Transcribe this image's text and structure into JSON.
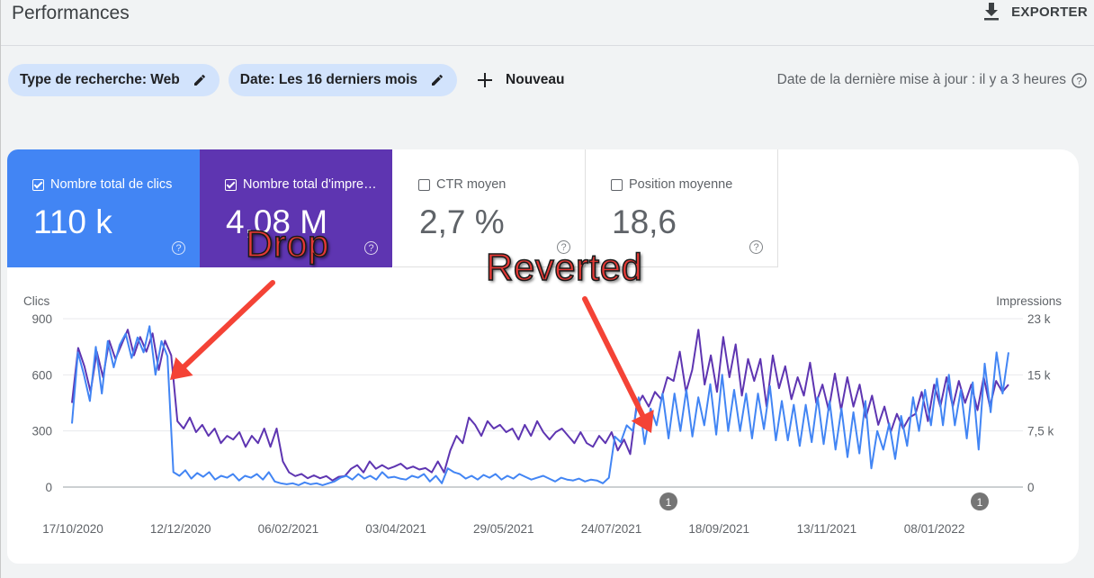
{
  "header": {
    "title": "Performances",
    "export_label": "EXPORTER"
  },
  "filters": {
    "search_type": "Type de recherche: Web",
    "date_range": "Date: Les 16 derniers mois",
    "new_label": "Nouveau",
    "last_update": "Date de la dernière mise à jour : il y a 3 heures"
  },
  "metrics": [
    {
      "label": "Nombre total de clics",
      "value": "110 k",
      "checked": true,
      "color": "#4285f4"
    },
    {
      "label": "Nombre total d'impressions",
      "value": "4,08 M",
      "checked": true,
      "color": "#5e35b1"
    },
    {
      "label": "CTR moyen",
      "value": "2,7 %",
      "checked": false
    },
    {
      "label": "Position moyenne",
      "value": "18,6",
      "checked": false
    }
  ],
  "annotations": {
    "drop": "Drop",
    "reverted": "Reverted"
  },
  "chart_data": {
    "type": "line",
    "left_axis_title": "Clics",
    "right_axis_title": "Impressions",
    "left_ticks": [
      "900",
      "600",
      "300",
      "0"
    ],
    "right_ticks": [
      "23 k",
      "15 k",
      "7,5 k",
      "0"
    ],
    "ylim_left": [
      0,
      900
    ],
    "ylim_right": [
      0,
      23000
    ],
    "x_tick_labels": [
      "17/10/2020",
      "12/12/2020",
      "06/02/2021",
      "03/04/2021",
      "29/05/2021",
      "24/07/2021",
      "18/09/2021",
      "13/11/2021",
      "08/01/2022"
    ],
    "event_markers": [
      "1",
      "1"
    ],
    "series": [
      {
        "name": "Clics",
        "axis": "left",
        "color": "#4285f4",
        "values": [
          340,
          720,
          600,
          460,
          750,
          500,
          780,
          640,
          760,
          820,
          690,
          800,
          720,
          860,
          600,
          780,
          700,
          80,
          60,
          90,
          45,
          75,
          55,
          80,
          40,
          60,
          50,
          70,
          35,
          60,
          50,
          70,
          40,
          80,
          30,
          20,
          15,
          20,
          10,
          25,
          15,
          20,
          10,
          20,
          30,
          50,
          60,
          40,
          70,
          45,
          60,
          40,
          80,
          50,
          55,
          45,
          40,
          60,
          50,
          70,
          30,
          60,
          20,
          100,
          80,
          70,
          45,
          60,
          40,
          65,
          50,
          70,
          40,
          60,
          45,
          70,
          55,
          40,
          50,
          60,
          45,
          30,
          50,
          40,
          35,
          45,
          30,
          40,
          35,
          20,
          50,
          270,
          240,
          330,
          300,
          480,
          230,
          420,
          330,
          500,
          260,
          500,
          300,
          520,
          270,
          480,
          330,
          550,
          280,
          600,
          300,
          520,
          300,
          500,
          260,
          500,
          310,
          540,
          250,
          460,
          250,
          440,
          220,
          440,
          240,
          480,
          230,
          460,
          200,
          420,
          160,
          400,
          180,
          460,
          100,
          300,
          200,
          340,
          150,
          380,
          220,
          480,
          300,
          520,
          330,
          580,
          330,
          600,
          330,
          520,
          260,
          560,
          200,
          660,
          400,
          720,
          500,
          720
        ]
      },
      {
        "name": "Impressions",
        "axis": "right",
        "color": "#5e35b1",
        "values": [
          11500,
          19000,
          16500,
          13000,
          18500,
          15000,
          20000,
          17500,
          19500,
          21500,
          18000,
          20500,
          18500,
          21000,
          16000,
          20000,
          18000,
          9000,
          8000,
          9500,
          7500,
          8500,
          7000,
          8000,
          6000,
          7000,
          6500,
          7500,
          5500,
          7000,
          6000,
          8000,
          5500,
          8000,
          3500,
          2000,
          1500,
          1800,
          1200,
          1600,
          1200,
          1500,
          900,
          1400,
          1500,
          2500,
          3000,
          2000,
          3500,
          2500,
          3000,
          2500,
          2800,
          3200,
          2500,
          2800,
          2400,
          2600,
          2000,
          3500,
          2000,
          5000,
          7000,
          6000,
          9500,
          8500,
          7000,
          9000,
          8000,
          8500,
          7500,
          8000,
          6500,
          8500,
          7000,
          9000,
          7500,
          6500,
          7500,
          8000,
          7000,
          6000,
          7500,
          6000,
          5500,
          7000,
          6000,
          7500,
          5000,
          6500,
          4500,
          11000,
          12500,
          11000,
          13000,
          12000,
          15000,
          14500,
          18500,
          13000,
          16000,
          21500,
          14000,
          18000,
          13000,
          20500,
          15000,
          19500,
          12500,
          17500,
          14500,
          17500,
          11000,
          18000,
          13500,
          16500,
          12000,
          15000,
          12500,
          17000,
          11500,
          14000,
          10500,
          15500,
          10500,
          15000,
          11000,
          14000,
          9500,
          12500,
          8500,
          11000,
          7500,
          10000,
          8000,
          9500,
          10000,
          13000,
          9000,
          14000,
          11000,
          15000,
          11000,
          14500,
          11500,
          14000,
          10500,
          15000,
          11000,
          14500,
          13000,
          14000
        ]
      }
    ]
  }
}
